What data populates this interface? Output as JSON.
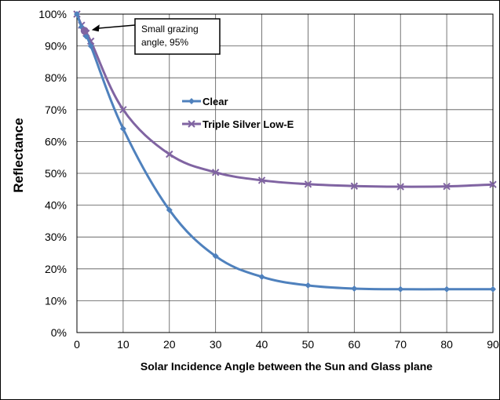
{
  "chart_data": {
    "type": "line",
    "xlabel": "Solar Incidence Angle between the Sun and Glass plane",
    "ylabel": "Reflectance",
    "xlim": [
      0,
      90
    ],
    "ylim": [
      0,
      100
    ],
    "x_ticks": [
      "0",
      "10",
      "20",
      "30",
      "40",
      "50",
      "60",
      "70",
      "80",
      "90"
    ],
    "y_ticks": [
      "0%",
      "10%",
      "20%",
      "30%",
      "40%",
      "50%",
      "60%",
      "70%",
      "80%",
      "90%",
      "100%"
    ],
    "grid": true,
    "legend_position": "center",
    "annotation": {
      "lines": [
        "Small grazing",
        "angle, 95%"
      ],
      "points_to": {
        "x": 2,
        "y": 95
      }
    },
    "series": [
      {
        "name": "Clear",
        "color": "#4f81bd",
        "marker": "diamond",
        "x": [
          0,
          1,
          2,
          3,
          10,
          20,
          30,
          40,
          50,
          60,
          70,
          80,
          90
        ],
        "y": [
          100,
          96,
          93,
          90,
          64,
          38.5,
          24,
          17.5,
          14.8,
          13.8,
          13.6,
          13.6,
          13.6
        ]
      },
      {
        "name": "Triple Silver Low-E",
        "color": "#8064a2",
        "marker": "x",
        "x": [
          0,
          1,
          2,
          3,
          10,
          20,
          30,
          40,
          50,
          60,
          70,
          80,
          90
        ],
        "y": [
          100,
          96.5,
          94,
          91.5,
          70,
          56,
          50.3,
          47.8,
          46.6,
          46,
          45.8,
          45.9,
          46.5
        ]
      }
    ]
  }
}
